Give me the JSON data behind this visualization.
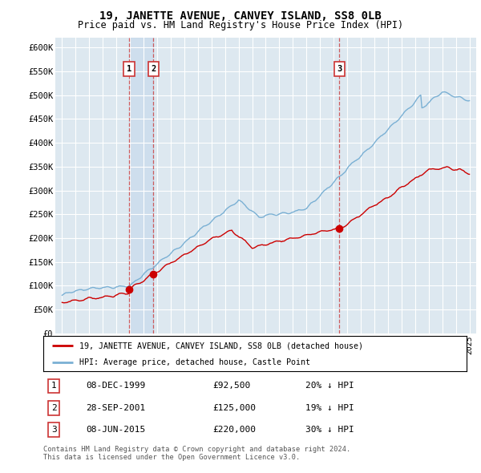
{
  "title": "19, JANETTE AVENUE, CANVEY ISLAND, SS8 0LB",
  "subtitle": "Price paid vs. HM Land Registry's House Price Index (HPI)",
  "red_label": "19, JANETTE AVENUE, CANVEY ISLAND, SS8 0LB (detached house)",
  "blue_label": "HPI: Average price, detached house, Castle Point",
  "transactions": [
    {
      "num": 1,
      "date": "08-DEC-1999",
      "price": 92500,
      "pct": "20%",
      "dir": "↓",
      "year_x": 1999.93
    },
    {
      "num": 2,
      "date": "28-SEP-2001",
      "price": 125000,
      "pct": "19%",
      "dir": "↓",
      "year_x": 2001.73
    },
    {
      "num": 3,
      "date": "08-JUN-2015",
      "price": 220000,
      "pct": "30%",
      "dir": "↓",
      "year_x": 2015.43
    }
  ],
  "footer": "Contains HM Land Registry data © Crown copyright and database right 2024.\nThis data is licensed under the Open Government Licence v3.0.",
  "ylim": [
    0,
    620000
  ],
  "yticks": [
    0,
    50000,
    100000,
    150000,
    200000,
    250000,
    300000,
    350000,
    400000,
    450000,
    500000,
    550000,
    600000
  ],
  "xlim": [
    1994.5,
    2025.5
  ],
  "bg_color": "#dde8f0",
  "plot_bg": "#dde8f0",
  "grid_color": "#ffffff",
  "red_color": "#cc0000",
  "blue_color": "#7ab0d4",
  "shade_color": "#ccdaec"
}
